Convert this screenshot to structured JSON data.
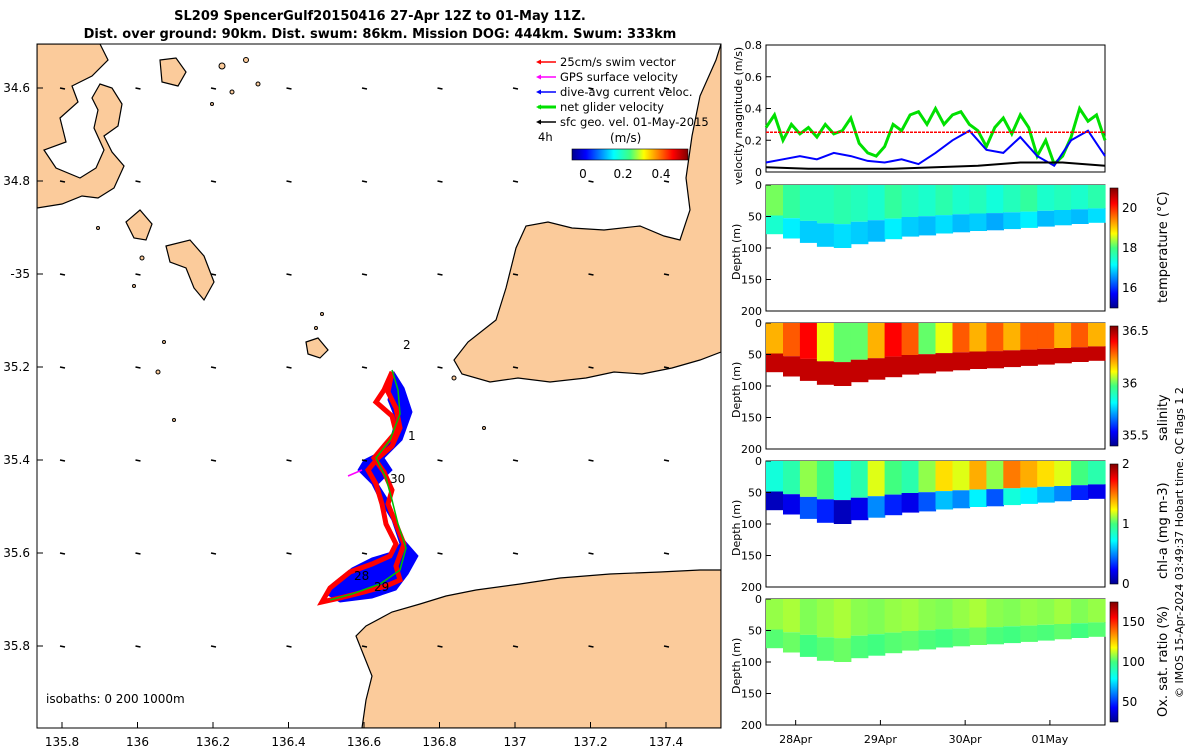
{
  "title": {
    "line1": "SL209 SpencerGulf20150416 27-Apr 12Z to 01-May 11Z.",
    "line2": "Dist. over ground: 90km. Dist. swum: 86km. Mission DOG: 444km. Swum: 333km"
  },
  "map": {
    "lon_ticks": [
      "135.8",
      "136",
      "136.2",
      "136.4",
      "136.6",
      "136.8",
      "137",
      "137.2",
      "137.4"
    ],
    "lat_ticks": [
      "34.6",
      "34.8",
      "-35",
      "35.2",
      "35.4",
      "35.6",
      "35.8"
    ],
    "legend": [
      {
        "label": "25cm/s swim vector",
        "color": "#ff0000"
      },
      {
        "label": "GPS surface velocity",
        "color": "#ff00ff"
      },
      {
        "label": "dive-avg current veloc.",
        "color": "#0000ff"
      },
      {
        "label": "net glider velocity",
        "color": "#00e000"
      },
      {
        "label": "sfc geo. vel. 01-May-2015",
        "color": "#000000"
      }
    ],
    "interval_label": "4h",
    "speed_colorbar": {
      "unit": "(m/s)",
      "ticks": [
        "0",
        "0.2",
        "0.4"
      ]
    },
    "day_labels": [
      {
        "text": "2"
      },
      {
        "text": "1"
      },
      {
        "text": "30"
      },
      {
        "text": "28"
      },
      {
        "text": "29"
      }
    ],
    "isobaths_text": "isobaths: 0   200  1000m",
    "colors": {
      "land": "#fbcb9b",
      "sea": "#ffffff",
      "coast": "#000000"
    }
  },
  "chart_data": [
    {
      "type": "line",
      "title": "velocity magnitude",
      "ylabel": "velocity magnitude (m/s)",
      "ylim": [
        0,
        0.8
      ],
      "yticks": [
        "0",
        "0.2",
        "0.4",
        "0.6",
        "0.8"
      ],
      "x_range_days": [
        0,
        4
      ],
      "series": [
        {
          "name": "net glider velocity",
          "color": "#00e000",
          "x": [
            0,
            0.1,
            0.2,
            0.3,
            0.4,
            0.5,
            0.6,
            0.7,
            0.8,
            0.9,
            1.0,
            1.1,
            1.2,
            1.3,
            1.4,
            1.5,
            1.6,
            1.7,
            1.8,
            1.9,
            2.0,
            2.1,
            2.2,
            2.3,
            2.4,
            2.5,
            2.6,
            2.7,
            2.8,
            2.9,
            3.0,
            3.1,
            3.2,
            3.3,
            3.4,
            3.5,
            3.6,
            3.7,
            3.8,
            3.9,
            4.0
          ],
          "values": [
            0.28,
            0.36,
            0.2,
            0.3,
            0.24,
            0.28,
            0.22,
            0.3,
            0.24,
            0.26,
            0.34,
            0.18,
            0.12,
            0.1,
            0.16,
            0.3,
            0.26,
            0.36,
            0.38,
            0.3,
            0.4,
            0.3,
            0.36,
            0.38,
            0.3,
            0.26,
            0.16,
            0.28,
            0.34,
            0.24,
            0.36,
            0.28,
            0.1,
            0.2,
            0.05,
            0.1,
            0.22,
            0.4,
            0.32,
            0.36,
            0.2
          ]
        },
        {
          "name": "dive-avg current veloc.",
          "color": "#0000ff",
          "x": [
            0,
            0.2,
            0.4,
            0.6,
            0.8,
            1.0,
            1.2,
            1.4,
            1.6,
            1.8,
            2.0,
            2.2,
            2.4,
            2.6,
            2.8,
            3.0,
            3.2,
            3.4,
            3.6,
            3.8,
            4.0
          ],
          "values": [
            0.06,
            0.08,
            0.1,
            0.08,
            0.12,
            0.1,
            0.07,
            0.06,
            0.08,
            0.05,
            0.12,
            0.2,
            0.26,
            0.14,
            0.12,
            0.22,
            0.1,
            0.04,
            0.2,
            0.26,
            0.1
          ]
        },
        {
          "name": "swim speed",
          "color": "#ff0000",
          "x": [
            0,
            4
          ],
          "values": [
            0.25,
            0.25
          ]
        },
        {
          "name": "sfc geo. vel.",
          "color": "#000000",
          "x": [
            0,
            0.5,
            1,
            1.5,
            2,
            2.5,
            3,
            3.5,
            4
          ],
          "values": [
            0.03,
            0.02,
            0.02,
            0.02,
            0.03,
            0.04,
            0.06,
            0.06,
            0.04
          ]
        }
      ]
    },
    {
      "type": "heatmap",
      "title": "temperature",
      "ylabel": "Depth (m)",
      "ylim": [
        200,
        0
      ],
      "yticks": [
        "0",
        "50",
        "100",
        "150",
        "200"
      ],
      "colorbar_label": "temperature (°C)",
      "colorbar_ticks": [
        "16",
        "18",
        "20"
      ],
      "colorbar_range": [
        15,
        21
      ],
      "bottom_depth": [
        78,
        85,
        92,
        98,
        100,
        94,
        90,
        86,
        82,
        80,
        77,
        75,
        73,
        72,
        70,
        68,
        66,
        64,
        62,
        60,
        58
      ],
      "values": [
        18.2,
        17.8,
        17.6,
        17.6,
        17.7,
        17.6,
        17.5,
        17.8,
        17.6,
        17.5,
        17.7,
        17.5,
        17.6,
        17.4,
        17.6,
        17.8,
        17.5,
        17.6,
        17.5,
        17.7,
        17.6
      ]
    },
    {
      "type": "heatmap",
      "title": "salinity",
      "ylabel": "Depth (m)",
      "ylim": [
        200,
        0
      ],
      "yticks": [
        "0",
        "50",
        "100",
        "150",
        "200"
      ],
      "colorbar_label": "salinity",
      "colorbar_ticks": [
        "35.5",
        "36",
        "36.5"
      ],
      "colorbar_range": [
        35.4,
        36.55
      ],
      "bottom_depth": [
        78,
        85,
        92,
        98,
        100,
        94,
        90,
        86,
        82,
        80,
        77,
        75,
        73,
        72,
        70,
        68,
        66,
        64,
        62,
        60,
        58
      ],
      "values": [
        36.2,
        36.3,
        36.4,
        36.1,
        36.0,
        36.0,
        36.2,
        36.4,
        36.3,
        36.0,
        36.1,
        36.3,
        36.2,
        36.3,
        36.2,
        36.3,
        36.3,
        36.2,
        36.3,
        36.2,
        36.3
      ]
    },
    {
      "type": "heatmap",
      "title": "chl-a",
      "ylabel": "Depth (m)",
      "ylim": [
        200,
        0
      ],
      "yticks": [
        "0",
        "50",
        "100",
        "150",
        "200"
      ],
      "colorbar_label": "chl-a (mg m-3)",
      "colorbar_ticks": [
        "0",
        "1",
        "2"
      ],
      "colorbar_range": [
        0,
        2
      ],
      "bottom_depth": [
        78,
        85,
        92,
        98,
        100,
        94,
        90,
        86,
        82,
        80,
        77,
        75,
        73,
        72,
        70,
        68,
        66,
        64,
        62,
        60,
        58
      ],
      "values": [
        0.8,
        0.9,
        1.1,
        1.0,
        0.8,
        0.9,
        1.2,
        1.0,
        0.9,
        1.1,
        1.3,
        1.2,
        1.4,
        1.1,
        1.5,
        1.4,
        1.3,
        1.2,
        1.0,
        0.9,
        0.8
      ]
    },
    {
      "type": "heatmap",
      "title": "Ox. sat. ratio",
      "ylabel": "Depth (m)",
      "ylim": [
        200,
        0
      ],
      "yticks": [
        "0",
        "50",
        "100",
        "150",
        "200"
      ],
      "colorbar_label": "Ox. sat. ratio (%)",
      "colorbar_ticks": [
        "50",
        "100",
        "150"
      ],
      "colorbar_range": [
        25,
        175
      ],
      "bottom_depth": [
        78,
        85,
        92,
        98,
        100,
        94,
        90,
        86,
        82,
        80,
        77,
        75,
        73,
        72,
        70,
        68,
        66,
        64,
        62,
        60,
        58
      ],
      "values": [
        108,
        110,
        106,
        108,
        110,
        107,
        106,
        108,
        109,
        107,
        106,
        108,
        110,
        107,
        106,
        108,
        107,
        109,
        106,
        108,
        107
      ]
    }
  ],
  "time_axis": {
    "ticks": [
      "28Apr",
      "29Apr",
      "30Apr",
      "01May"
    ]
  },
  "side_note": "© IMOS 15-Apr-2024 03:49:37 Hobart time. QC flags 1  2"
}
